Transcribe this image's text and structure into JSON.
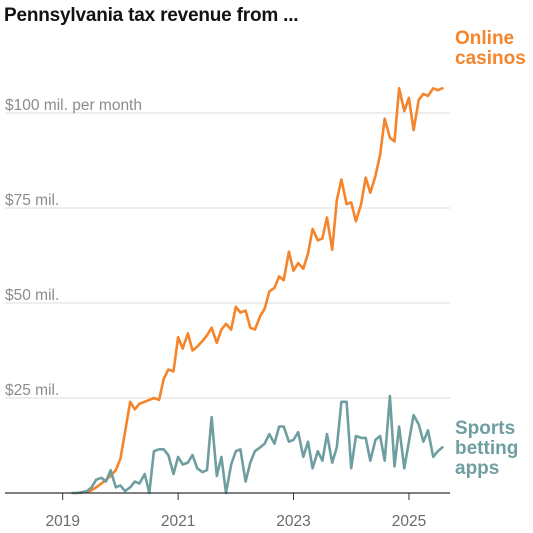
{
  "title": "Pennsylvania tax revenue from ...",
  "chart_data": {
    "type": "line",
    "title": "Pennsylvania tax revenue from ...",
    "xlabel": "",
    "ylabel": "",
    "xlim": [
      2018.0,
      2025.85
    ],
    "ylim": [
      0,
      110
    ],
    "x_ticks": [
      2019,
      2021,
      2023,
      2025
    ],
    "x_tick_labels": [
      "2019",
      "2021",
      "2023",
      "2025"
    ],
    "y_ticks": [
      25,
      50,
      75,
      100
    ],
    "y_tick_labels": [
      "$25 mil.",
      "$50 mil.",
      "$75 mil.",
      "$100 mil. per month"
    ],
    "grid": true,
    "legend": "direct labels at line ends (right)",
    "series": [
      {
        "name": "Online casinos",
        "label_lines": [
          "Online",
          "casinos"
        ],
        "color": "#f5842a",
        "x": [
          2019.25,
          2019.33,
          2019.42,
          2019.5,
          2019.58,
          2019.67,
          2019.75,
          2019.83,
          2019.92,
          2020.0,
          2020.08,
          2020.17,
          2020.25,
          2020.33,
          2020.42,
          2020.5,
          2020.58,
          2020.67,
          2020.75,
          2020.83,
          2020.92,
          2021.0,
          2021.08,
          2021.17,
          2021.25,
          2021.33,
          2021.42,
          2021.5,
          2021.58,
          2021.67,
          2021.75,
          2021.83,
          2021.92,
          2022.0,
          2022.08,
          2022.17,
          2022.25,
          2022.33,
          2022.42,
          2022.5,
          2022.58,
          2022.67,
          2022.75,
          2022.83,
          2022.92,
          2023.0,
          2023.08,
          2023.17,
          2023.25,
          2023.33,
          2023.42,
          2023.5,
          2023.58,
          2023.67,
          2023.75,
          2023.83,
          2023.92,
          2024.0,
          2024.08,
          2024.17,
          2024.25,
          2024.33,
          2024.42,
          2024.5,
          2024.58,
          2024.67,
          2024.75,
          2024.83,
          2024.92,
          2025.0,
          2025.08,
          2025.17,
          2025.25,
          2025.33,
          2025.42,
          2025.5,
          2025.58
        ],
        "values": [
          0.0,
          0.1,
          0.3,
          0.7,
          1.5,
          2.5,
          3.5,
          4.5,
          6.0,
          9.0,
          16.0,
          24.0,
          22.0,
          23.5,
          24.0,
          24.5,
          25.0,
          24.5,
          30.0,
          32.5,
          32.0,
          41.0,
          38.0,
          42.0,
          37.5,
          38.5,
          40.0,
          41.5,
          43.5,
          39.5,
          43.0,
          44.5,
          43.0,
          49.0,
          47.5,
          48.0,
          43.5,
          43.0,
          46.5,
          48.5,
          53.0,
          54.0,
          57.0,
          56.0,
          63.5,
          58.5,
          60.5,
          59.0,
          63.0,
          69.5,
          66.5,
          67.0,
          72.5,
          64.0,
          77.0,
          82.5,
          76.0,
          76.5,
          71.5,
          76.0,
          83.0,
          79.0,
          83.5,
          89.0,
          98.5,
          93.5,
          92.5,
          106.5,
          100.5,
          104.0,
          95.5,
          103.5,
          105.0,
          104.5,
          106.5,
          106.0,
          106.5
        ]
      },
      {
        "name": "Sports betting apps",
        "label_lines": [
          "Sports",
          "betting",
          "apps"
        ],
        "color": "#6f9ea0",
        "x": [
          2019.17,
          2019.25,
          2019.33,
          2019.42,
          2019.5,
          2019.58,
          2019.67,
          2019.75,
          2019.83,
          2019.92,
          2020.0,
          2020.08,
          2020.17,
          2020.25,
          2020.33,
          2020.42,
          2020.5,
          2020.58,
          2020.67,
          2020.75,
          2020.83,
          2020.92,
          2021.0,
          2021.08,
          2021.17,
          2021.25,
          2021.33,
          2021.42,
          2021.5,
          2021.58,
          2021.67,
          2021.75,
          2021.83,
          2021.92,
          2022.0,
          2022.08,
          2022.17,
          2022.25,
          2022.33,
          2022.42,
          2022.5,
          2022.58,
          2022.67,
          2022.75,
          2022.83,
          2022.92,
          2023.0,
          2023.08,
          2023.17,
          2023.25,
          2023.33,
          2023.42,
          2023.5,
          2023.58,
          2023.67,
          2023.75,
          2023.83,
          2023.92,
          2024.0,
          2024.08,
          2024.17,
          2024.25,
          2024.33,
          2024.42,
          2024.5,
          2024.58,
          2024.67,
          2024.75,
          2024.83,
          2024.92,
          2025.0,
          2025.08,
          2025.17,
          2025.25,
          2025.33,
          2025.42,
          2025.5,
          2025.58
        ],
        "values": [
          0.0,
          0.0,
          0.2,
          0.5,
          1.5,
          3.5,
          4.0,
          3.0,
          6.0,
          1.5,
          2.0,
          0.5,
          1.5,
          3.0,
          2.5,
          5.0,
          0.0,
          11.0,
          11.5,
          11.5,
          10.0,
          5.0,
          9.5,
          7.5,
          8.0,
          10.0,
          6.5,
          5.5,
          6.0,
          20.0,
          4.5,
          9.5,
          0.0,
          7.5,
          11.0,
          11.5,
          3.0,
          8.0,
          11.0,
          12.0,
          13.0,
          15.5,
          13.0,
          17.5,
          17.5,
          13.5,
          14.0,
          16.0,
          9.5,
          13.5,
          6.5,
          11.0,
          8.5,
          15.5,
          8.0,
          12.0,
          24.0,
          24.0,
          6.5,
          15.0,
          14.5,
          14.5,
          8.5,
          14.0,
          15.0,
          8.5,
          25.5,
          7.0,
          17.5,
          6.5,
          13.5,
          20.5,
          18.0,
          13.5,
          16.5,
          9.5,
          11.0,
          12.0
        ]
      }
    ]
  }
}
